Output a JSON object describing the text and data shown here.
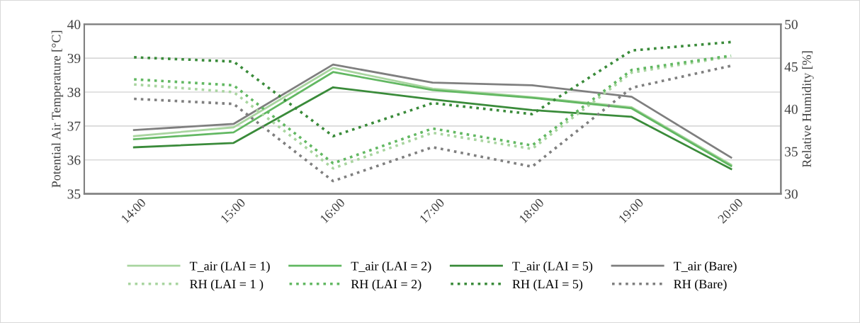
{
  "chart_data": {
    "type": "line",
    "xlabel": null,
    "ylabel": "Potential Air Temperature [°C]",
    "y2label": "Relative Humidity [%]",
    "categories": [
      "14:00",
      "15:00",
      "16:00",
      "17:00",
      "18:00",
      "19:00",
      "20:00"
    ],
    "ylim": [
      35,
      40
    ],
    "yticks": [
      35,
      36,
      37,
      38,
      39,
      40
    ],
    "y2lim": [
      30,
      50
    ],
    "y2ticks": [
      30,
      35,
      40,
      45,
      50
    ],
    "grid": "y",
    "legend": "bottom",
    "marker": "none",
    "series": [
      {
        "name": "T_air (LAI = 1)",
        "color": "#a9d5a0",
        "line_style": "solid",
        "values": [
          36.7,
          36.96,
          38.71,
          38.1,
          37.85,
          37.55,
          35.86
        ]
      },
      {
        "name": "T_air (LAI = 2)",
        "color": "#62b862",
        "line_style": "solid",
        "values": [
          36.61,
          36.81,
          38.59,
          38.06,
          37.83,
          37.52,
          35.82
        ]
      },
      {
        "name": "T_air (LAI = 5)",
        "color": "#3a8b3a",
        "line_style": "solid",
        "values": [
          36.37,
          36.5,
          38.14,
          37.78,
          37.47,
          37.27,
          35.73
        ]
      },
      {
        "name": "T_air (Bare)",
        "color": "#7f7f7f",
        "line_style": "solid",
        "values": [
          36.88,
          37.06,
          38.81,
          38.28,
          38.2,
          37.86,
          36.07
        ]
      },
      {
        "name": "RH (LAI = 1 )",
        "color": "#a9d5a0",
        "line_style": "dotted",
        "axis": "y2",
        "values": [
          42.9,
          42.0,
          33.0,
          37.2,
          35.3,
          44.3,
          46.2
        ]
      },
      {
        "name": "RH (LAI = 2)",
        "color": "#62b862",
        "line_style": "dotted",
        "axis": "y2",
        "values": [
          43.5,
          42.8,
          33.6,
          37.7,
          35.7,
          44.6,
          46.3
        ]
      },
      {
        "name": "RH (LAI = 5)",
        "color": "#3a8b3a",
        "line_style": "dotted",
        "axis": "y2",
        "values": [
          46.1,
          45.6,
          36.8,
          40.7,
          39.4,
          46.9,
          47.9
        ]
      },
      {
        "name": "RH (Bare)",
        "color": "#7f7f7f",
        "line_style": "dotted",
        "axis": "y2",
        "values": [
          41.2,
          40.6,
          31.5,
          35.5,
          33.2,
          42.5,
          45.1
        ]
      }
    ]
  }
}
